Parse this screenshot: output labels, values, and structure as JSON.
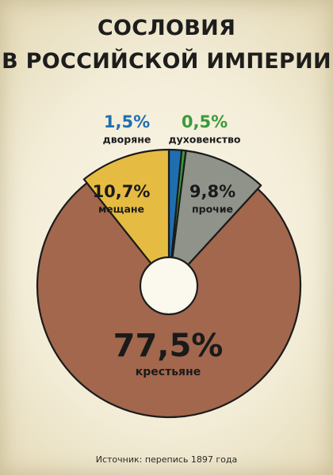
{
  "title_line1": "СОСЛОВИЯ",
  "title_line2": "В РОССИЙСКОЙ ИМПЕРИИ",
  "source": "Источник: перепись 1897 года",
  "chart_data": {
    "type": "pie",
    "title": "СОСЛОВИЯ В РОССИЙСКОЙ ИМПЕРИИ",
    "donut": true,
    "slices": [
      {
        "label": "дворяне",
        "value": 1.5,
        "value_label": "1,5%",
        "color": "#1f6fb0",
        "label_color": "#1f6fb0"
      },
      {
        "label": "духовенство",
        "value": 0.5,
        "value_label": "0,5%",
        "color": "#3a9a3a",
        "label_color": "#3a9a3a"
      },
      {
        "label": "прочие",
        "value": 9.8,
        "value_label": "9,8%",
        "color": "#8f938a",
        "label_color": "#1a1a1a"
      },
      {
        "label": "крестьяне",
        "value": 77.5,
        "value_label": "77,5%",
        "color": "#a2674d",
        "label_color": "#1a1a1a"
      },
      {
        "label": "мещане",
        "value": 10.7,
        "value_label": "10,7%",
        "color": "#e6bb42",
        "label_color": "#1a1a1a"
      }
    ]
  }
}
